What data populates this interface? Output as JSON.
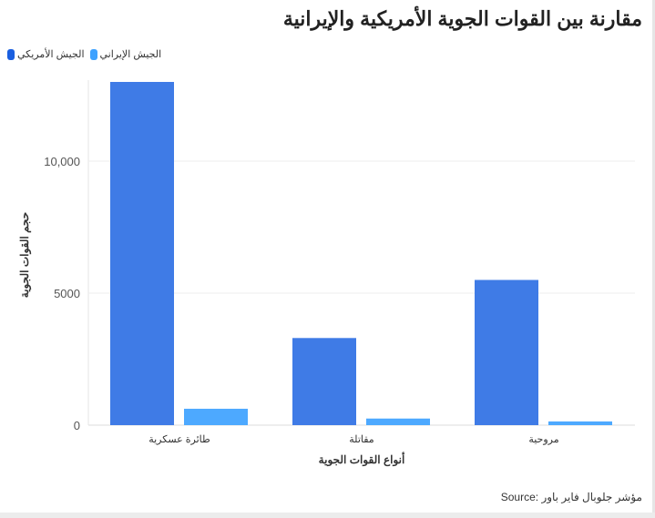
{
  "chart_data": {
    "type": "bar",
    "title": "مقارنة بين القوات الجوية الأمريكية والإيرانية",
    "xlabel": "أنواع القوات الجوية",
    "ylabel": "حجم القوات الجوية",
    "categories": [
      "طائرة عسكرية",
      "مقاتلة",
      "مروحية"
    ],
    "series": [
      {
        "name": "الجيش الأمريكي",
        "color": "#3f7be6",
        "values": [
          13000,
          3300,
          5500
        ]
      },
      {
        "name": "الجيش الإيراني",
        "color": "#4da9ff",
        "values": [
          620,
          250,
          140
        ]
      }
    ],
    "yticks": [
      0,
      5000,
      10000
    ],
    "ytick_labels": [
      "0",
      "5000",
      "10,000"
    ],
    "ylim": [
      0,
      13000
    ],
    "grid": true,
    "legend_position": "top-left",
    "source": "Source: مؤشر جلوبال فاير باور"
  }
}
